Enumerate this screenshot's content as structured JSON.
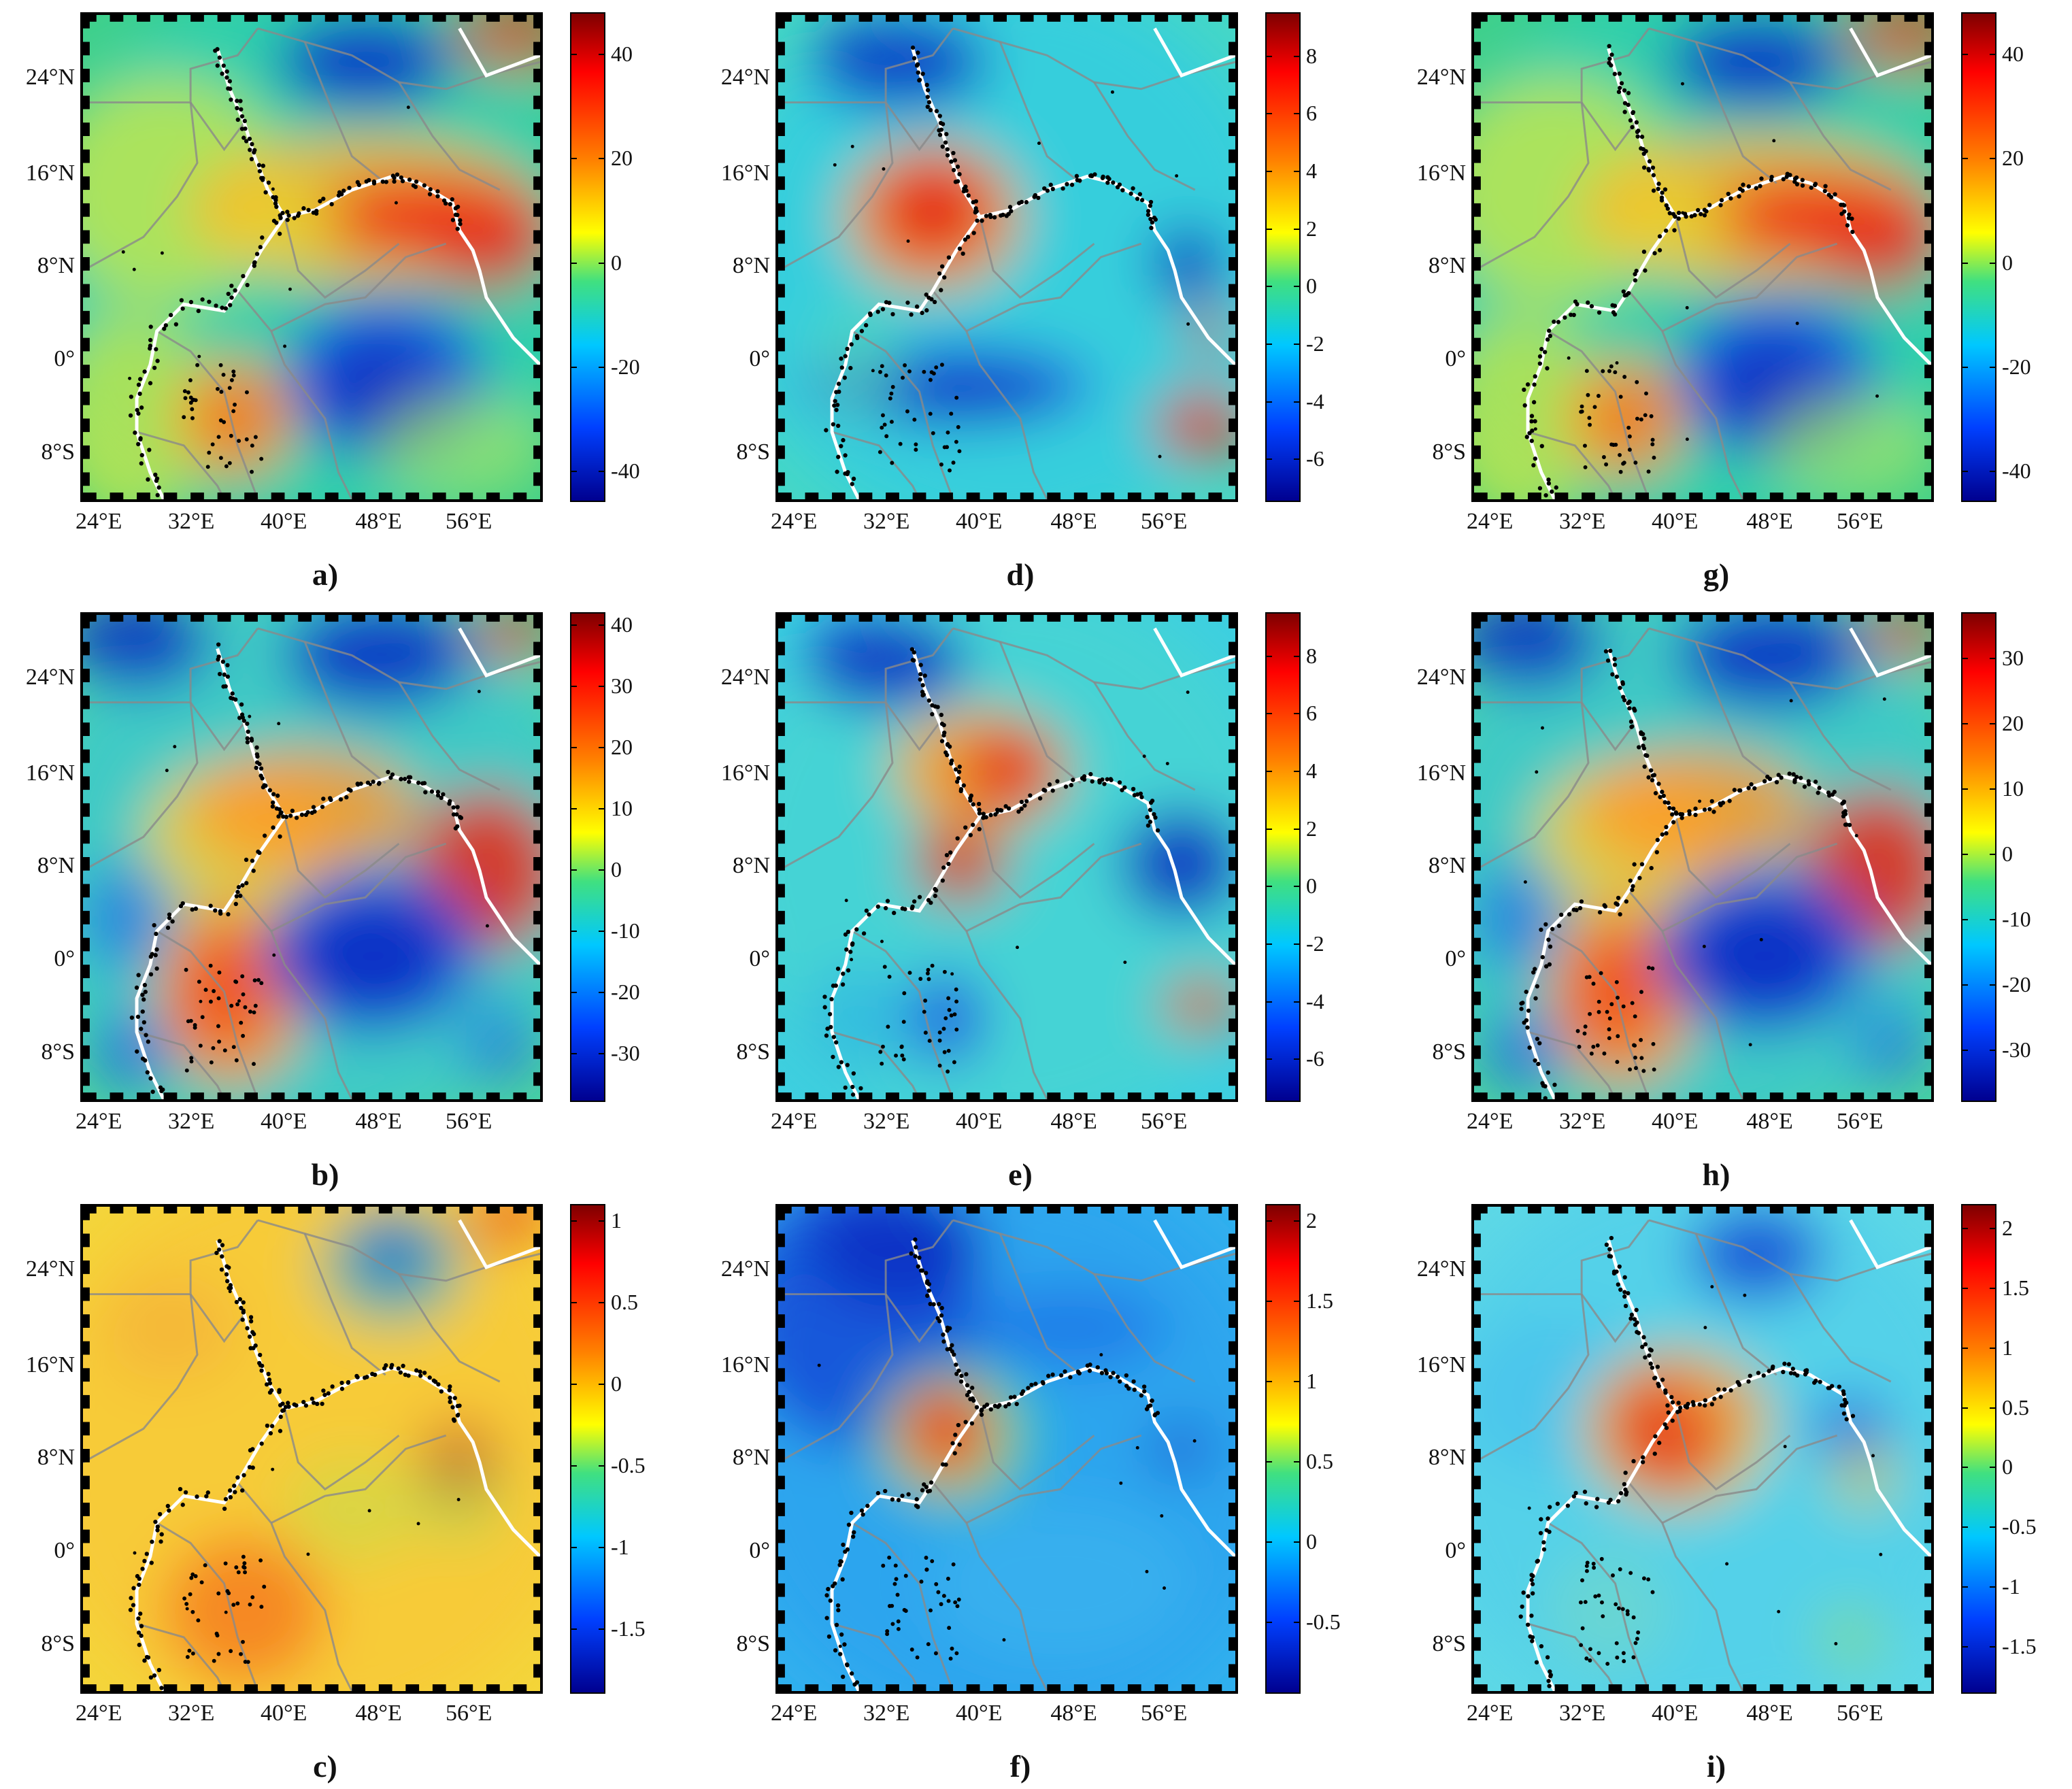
{
  "figure": {
    "axes": {
      "lat_labels": [
        "24°N",
        "16°N",
        "8°N",
        "0°",
        "8°S"
      ],
      "lon_labels": [
        "24°E",
        "32°E",
        "40°E",
        "48°E",
        "56°E"
      ]
    },
    "panels": [
      {
        "id": "a",
        "label": "a)",
        "theme": "A",
        "colorbar": {
          "min": -46,
          "max": 48,
          "ticks": [
            "40",
            "20",
            "0",
            "-20",
            "-40"
          ],
          "tick_values": [
            40,
            20,
            0,
            -20,
            -40
          ]
        }
      },
      {
        "id": "d",
        "label": "d)",
        "theme": "D",
        "colorbar": {
          "min": -7.5,
          "max": 9.5,
          "ticks": [
            "8",
            "6",
            "4",
            "2",
            "0",
            "-2",
            "-4",
            "-6"
          ],
          "tick_values": [
            8,
            6,
            4,
            2,
            0,
            -2,
            -4,
            -6
          ]
        }
      },
      {
        "id": "g",
        "label": "g)",
        "theme": "A",
        "colorbar": {
          "min": -46,
          "max": 48,
          "ticks": [
            "40",
            "20",
            "0",
            "-20",
            "-40"
          ],
          "tick_values": [
            40,
            20,
            0,
            -20,
            -40
          ]
        }
      },
      {
        "id": "b",
        "label": "b)",
        "theme": "B",
        "colorbar": {
          "min": -38,
          "max": 42,
          "ticks": [
            "40",
            "30",
            "20",
            "10",
            "0",
            "-10",
            "-20",
            "-30"
          ],
          "tick_values": [
            40,
            30,
            20,
            10,
            0,
            -10,
            -20,
            -30
          ]
        }
      },
      {
        "id": "e",
        "label": "e)",
        "theme": "E",
        "colorbar": {
          "min": -7.5,
          "max": 9.5,
          "ticks": [
            "8",
            "6",
            "4",
            "2",
            "0",
            "-2",
            "-4",
            "-6"
          ],
          "tick_values": [
            8,
            6,
            4,
            2,
            0,
            -2,
            -4,
            -6
          ]
        }
      },
      {
        "id": "h",
        "label": "h)",
        "theme": "B",
        "colorbar": {
          "min": -38,
          "max": 37,
          "ticks": [
            "30",
            "20",
            "10",
            "0",
            "-10",
            "-20",
            "-30"
          ],
          "tick_values": [
            30,
            20,
            10,
            0,
            -10,
            -20,
            -30
          ]
        }
      },
      {
        "id": "c",
        "label": "c)",
        "theme": "C",
        "colorbar": {
          "min": -1.9,
          "max": 1.1,
          "ticks": [
            "1",
            "0.5",
            "0",
            "-0.5",
            "-1",
            "-1.5"
          ],
          "tick_values": [
            1,
            0.5,
            0,
            -0.5,
            -1,
            -1.5
          ]
        }
      },
      {
        "id": "f",
        "label": "f)",
        "theme": "F",
        "colorbar": {
          "min": -0.95,
          "max": 2.1,
          "ticks": [
            "2",
            "1.5",
            "1",
            "0.5",
            "0",
            "-0.5"
          ],
          "tick_values": [
            2,
            1.5,
            1,
            0.5,
            0,
            -0.5
          ]
        }
      },
      {
        "id": "i",
        "label": "i)",
        "theme": "I",
        "colorbar": {
          "min": -1.9,
          "max": 2.2,
          "ticks": [
            "2",
            "1.5",
            "1",
            "0.5",
            "0",
            "-0.5",
            "-1",
            "-1.5"
          ],
          "tick_values": [
            2,
            1.5,
            1,
            0.5,
            0,
            -0.5,
            -1,
            -1.5
          ]
        }
      }
    ]
  }
}
